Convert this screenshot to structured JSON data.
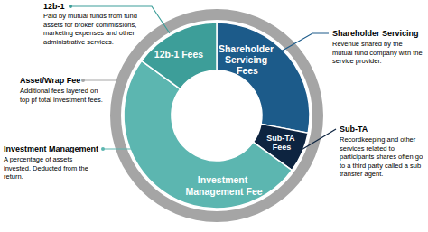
{
  "chart_data": {
    "type": "donut",
    "categories": [
      "Shareholder Servicing Fees",
      "Sub-TA Fees",
      "Investment Management Fee",
      "12b-1 Fees"
    ],
    "values": [
      28,
      7,
      50,
      15
    ],
    "colors": [
      "#1c5b8a",
      "#0d2440",
      "#5cb6b0",
      "#3d9e99"
    ],
    "annotations": [
      {
        "title": "12b-1",
        "text": "Paid by mutual funds from fund assets for broker commissions, marketing expenses and other administrative services."
      },
      {
        "title": "Shareholder Servicing",
        "text": "Revenue shared by the mutual fund company with the service provider."
      },
      {
        "title": "Sub-TA",
        "text": "Recordkeeping and other services related to participants shares often go to a third party called a sub transfer agent."
      },
      {
        "title": "Asset/Wrap Fee",
        "text": "Additional fees layered on top pf total investment fees."
      },
      {
        "title": "Investment Management",
        "text": "A percentage of assets invested. Deducted from the return."
      }
    ]
  }
}
